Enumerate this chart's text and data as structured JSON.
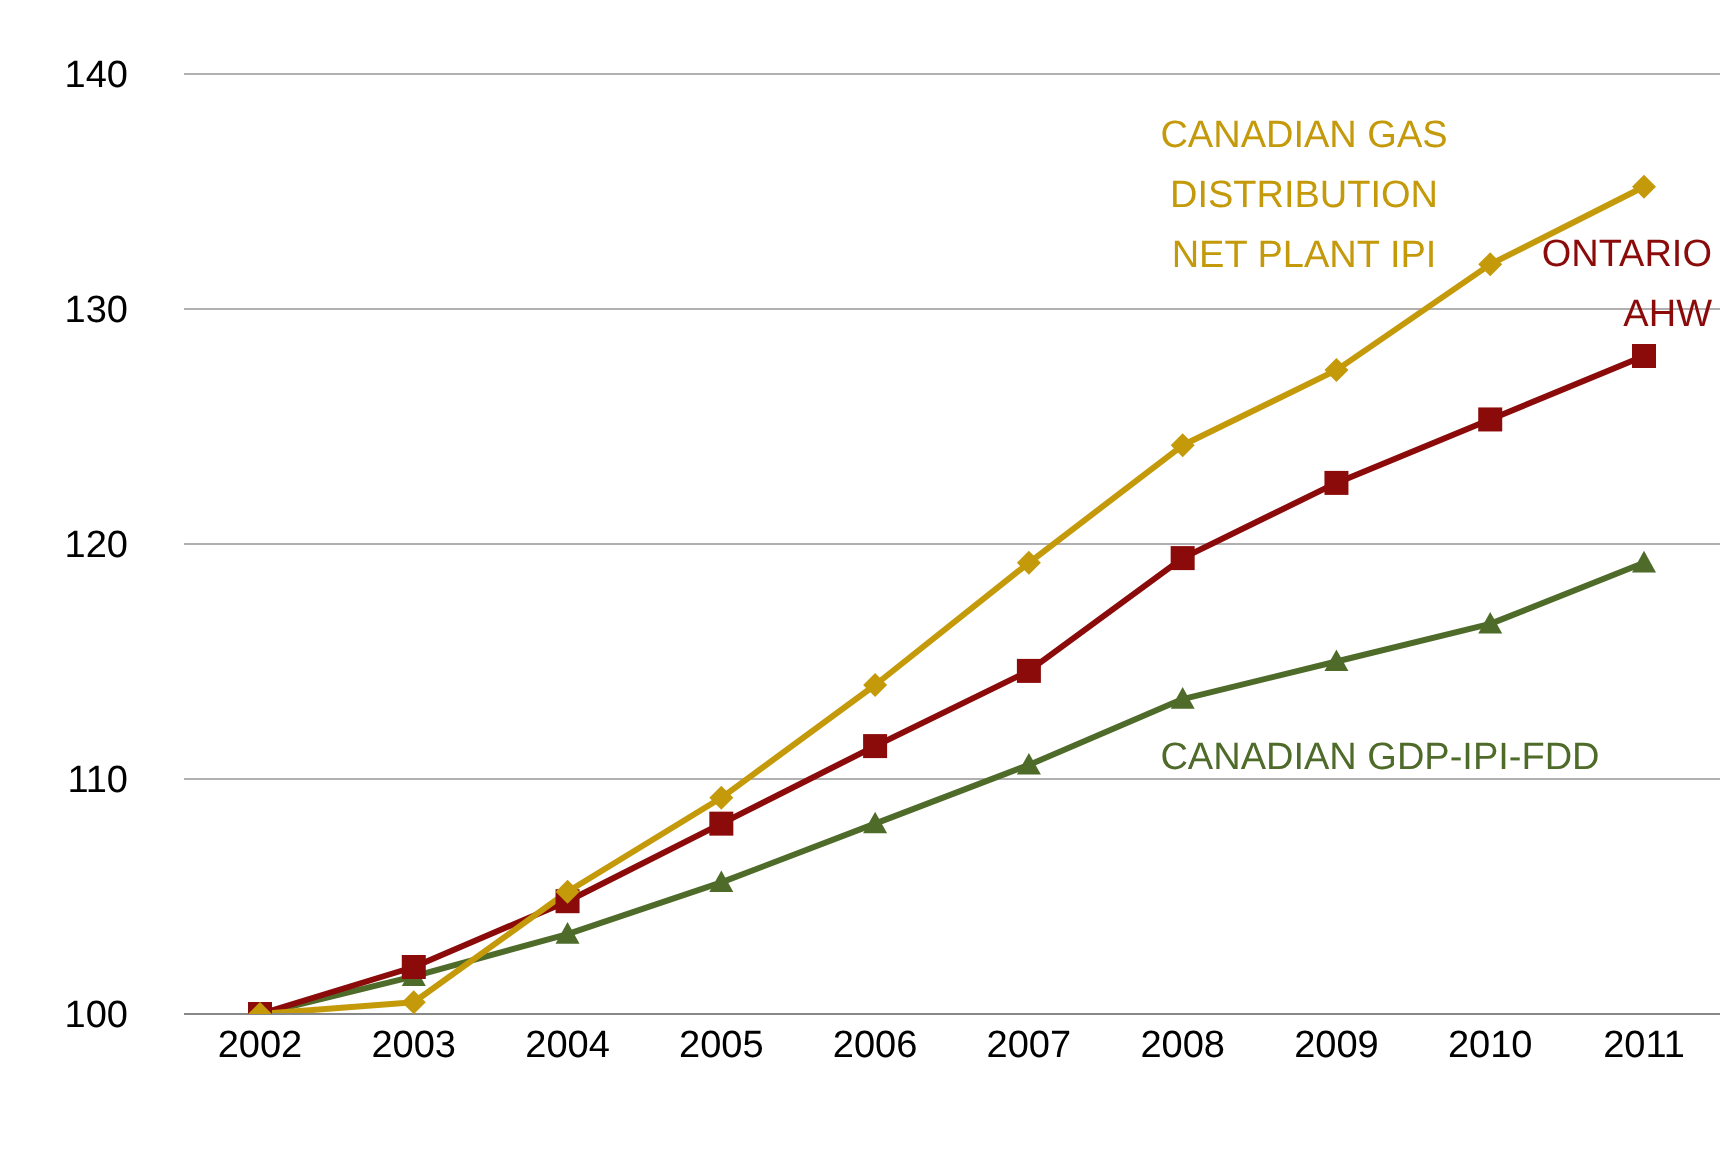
{
  "chart_data": {
    "type": "line",
    "categories": [
      "2002",
      "2003",
      "2004",
      "2005",
      "2006",
      "2007",
      "2008",
      "2009",
      "2010",
      "2011"
    ],
    "series": [
      {
        "name": "CANADIAN GAS\nDISTRIBUTION\nNET PLANT IPI",
        "color": "#c49a0a",
        "marker": "diamond",
        "values": [
          100,
          100.5,
          105.2,
          109.2,
          114,
          119.2,
          124.2,
          127.4,
          131.9,
          135.2
        ]
      },
      {
        "name": "ONTARIO\nAHW",
        "color": "#8b0a0a",
        "marker": "square",
        "values": [
          100,
          102,
          104.8,
          108.1,
          111.4,
          114.6,
          119.4,
          122.6,
          125.3,
          128
        ]
      },
      {
        "name": "CANADIAN GDP-IPI-FDD",
        "color": "#4f6b2a",
        "marker": "triangle",
        "values": [
          100,
          101.6,
          103.4,
          105.6,
          108.1,
          110.6,
          113.4,
          115,
          116.6,
          119.2
        ]
      }
    ],
    "ylim": [
      100,
      140
    ],
    "yticks": [
      100,
      110,
      120,
      130,
      140
    ],
    "grid": "y",
    "legend": false
  }
}
